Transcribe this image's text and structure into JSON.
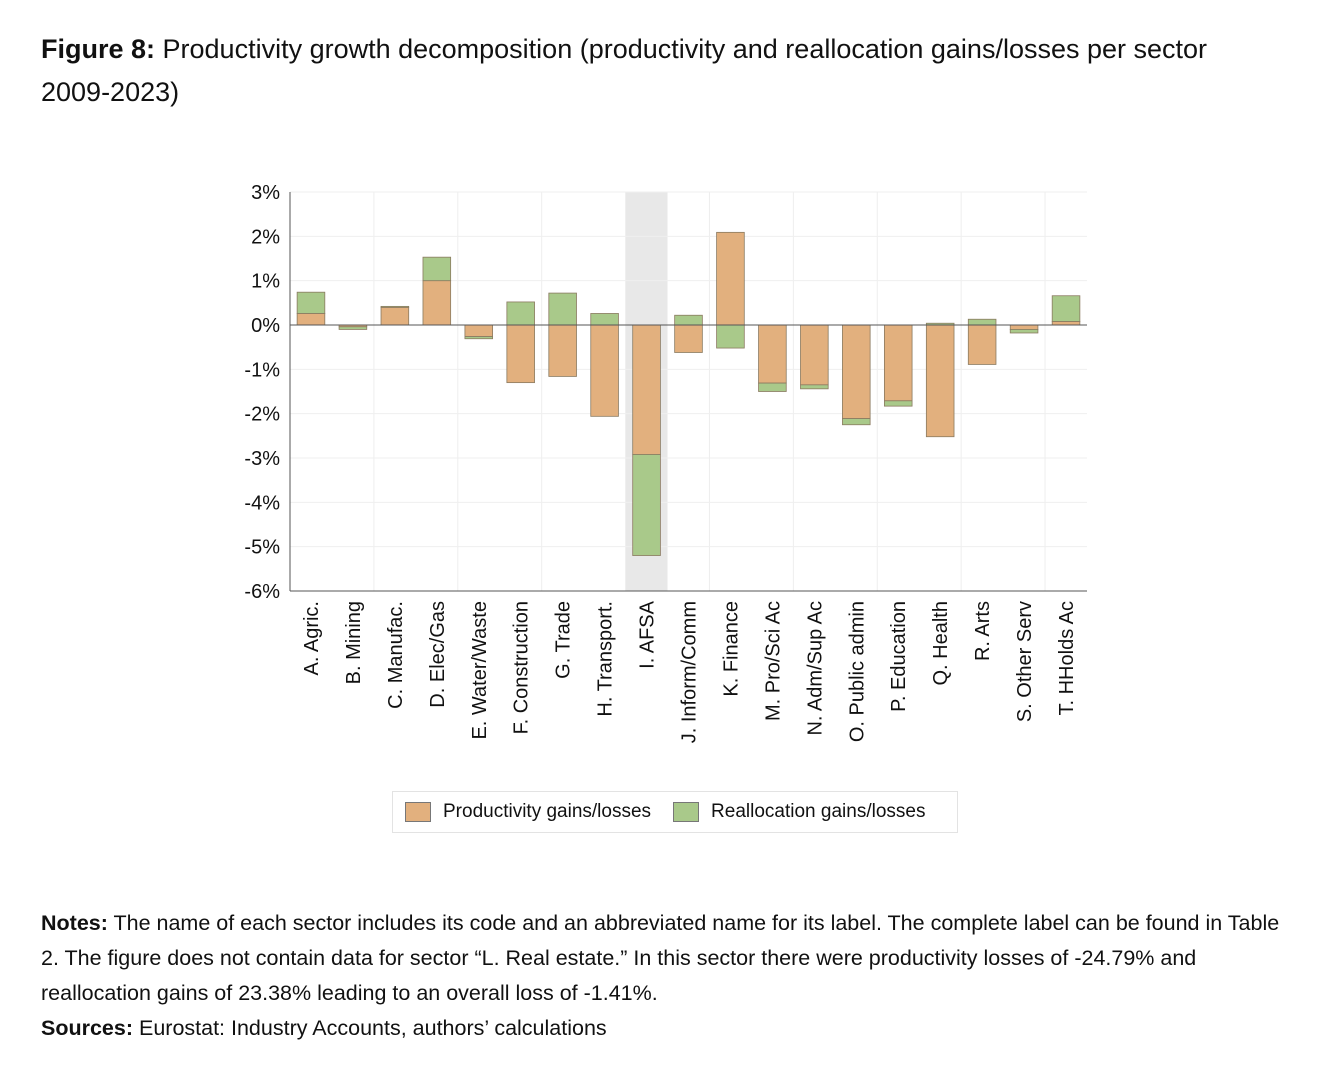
{
  "title": {
    "label": "Figure 8:",
    "text": " Productivity growth decomposition (productivity and reallocation gains/losses per sector 2009-2023)"
  },
  "chart_data": {
    "type": "bar",
    "stacked": true,
    "categories": [
      "A. Agric.",
      "B. Mining",
      "C. Manufac.",
      "D. Elec/Gas",
      "E. Water/Waste",
      "F. Construction",
      "G. Trade",
      "H. Transport.",
      "I. AFSA",
      "J. Inform/Comm",
      "K. Finance",
      "M. Pro/Sci Ac",
      "N. Adm/Sup Ac",
      "O. Public admin",
      "P. Education",
      "Q. Health",
      "R. Arts",
      "S. Other Serv",
      "T. HHolds Ac"
    ],
    "series": [
      {
        "name": "Productivity gains/losses",
        "color": "#e2b07e",
        "values": [
          0.26,
          -0.04,
          0.4,
          1.0,
          -0.26,
          -1.3,
          -1.16,
          -2.06,
          -2.92,
          -0.62,
          2.09,
          -1.31,
          -1.35,
          -2.11,
          -1.71,
          -2.52,
          -0.89,
          -0.1,
          0.08
        ]
      },
      {
        "name": "Reallocation gains/losses",
        "color": "#a9c98a",
        "values": [
          0.48,
          -0.06,
          0.02,
          0.53,
          -0.05,
          0.52,
          0.72,
          0.26,
          -2.28,
          0.22,
          -0.52,
          -0.19,
          -0.09,
          -0.14,
          -0.12,
          0.04,
          0.13,
          -0.08,
          0.58
        ]
      }
    ],
    "highlighted_category": "I. AFSA",
    "yticks": [
      "3%",
      "2%",
      "1%",
      "0%",
      "-1%",
      "-2%",
      "-3%",
      "-4%",
      "-5%",
      "-6%"
    ],
    "ylim": [
      -6,
      3
    ],
    "xlabel": "",
    "ylabel": "",
    "legend": "bottom"
  },
  "notes": {
    "label": "Notes:",
    "text": " The name of each sector includes its code and an abbreviated name for its label. The complete label can be found in Table 2. The figure does not contain data for sector “L. Real estate.” In this sector there were productivity losses of -24.79% and reallocation gains of 23.38% leading to an overall loss of -1.41%.",
    "sources_label": "Sources:",
    "sources_text": " Eurostat: Industry Accounts, authors’ calculations"
  }
}
